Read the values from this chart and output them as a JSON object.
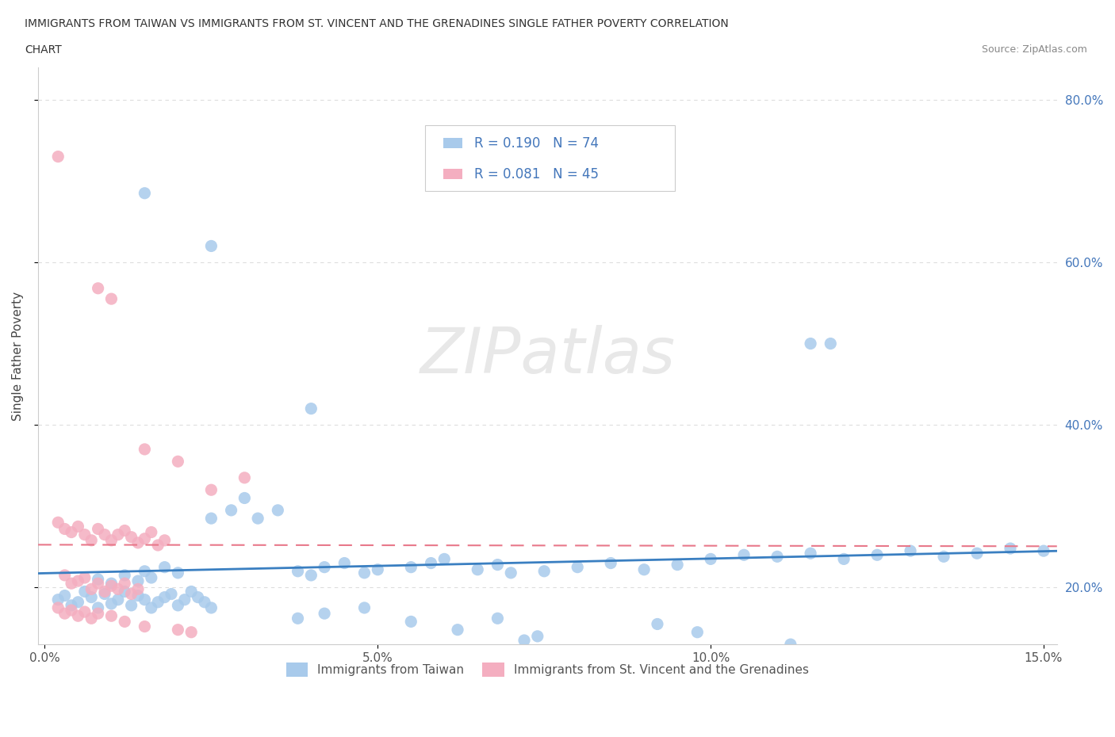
{
  "title_line1": "IMMIGRANTS FROM TAIWAN VS IMMIGRANTS FROM ST. VINCENT AND THE GRENADINES SINGLE FATHER POVERTY CORRELATION",
  "title_line2": "CHART",
  "source": "Source: ZipAtlas.com",
  "ylabel": "Single Father Poverty",
  "xlim": [
    -0.001,
    0.152
  ],
  "ylim": [
    0.13,
    0.84
  ],
  "yticks": [
    0.2,
    0.4,
    0.6,
    0.8
  ],
  "ytick_labels_right": [
    "20.0%",
    "40.0%",
    "60.0%",
    "80.0%"
  ],
  "xticks": [
    0.0,
    0.05,
    0.1,
    0.15
  ],
  "xtick_labels": [
    "0.0%",
    "5.0%",
    "10.0%",
    "15.0%"
  ],
  "watermark": "ZIPatlas",
  "color_taiwan": "#a8caeb",
  "color_stvincent": "#f4aec0",
  "color_trend_taiwan": "#3a7fc1",
  "color_trend_stvincent": "#e8788a",
  "background": "#ffffff",
  "grid_color": "#dddddd",
  "text_color": "#444444",
  "right_axis_color": "#4477bb",
  "legend_box_color": "#eeeeee"
}
